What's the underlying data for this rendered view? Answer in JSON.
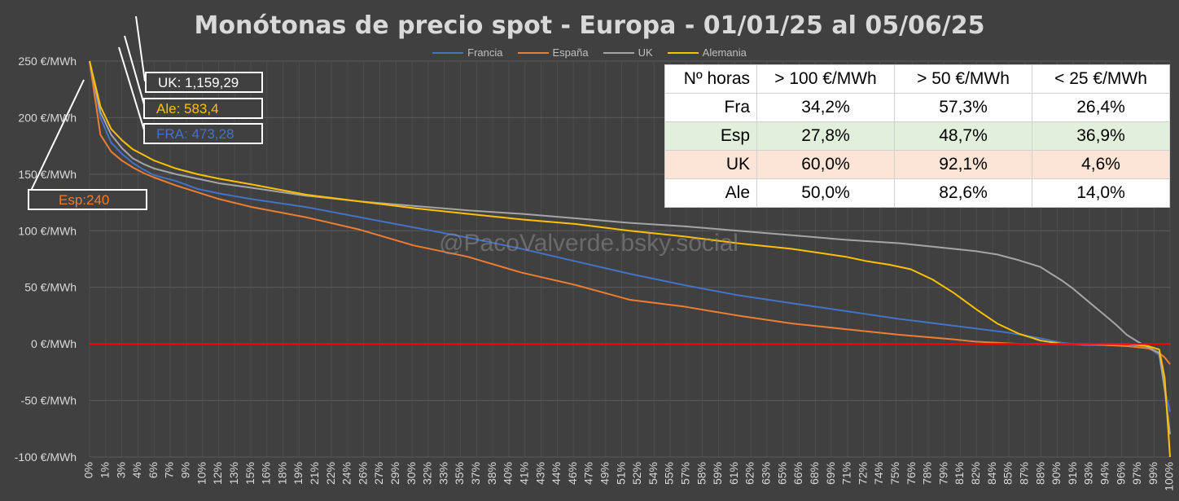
{
  "title": "Monótonas de precio spot - Europa  - 01/01/25 al 05/06/25",
  "watermark": "@PacoValverde.bsky.social",
  "colors": {
    "Francia": "#4472c4",
    "España": "#ed7d31",
    "UK": "#a5a5a5",
    "Alemania": "#ffc000",
    "zero_line": "#ff0000",
    "background": "#404040"
  },
  "callouts": [
    {
      "key": "uk",
      "text": "UK: 1,159,29",
      "color": "#ffffff"
    },
    {
      "key": "ale",
      "text": "Ale: 583,4",
      "color": "#ffc000"
    },
    {
      "key": "fra",
      "text": "FRA: 473,28",
      "color": "#4472c4"
    },
    {
      "key": "esp",
      "text": "Esp:240",
      "color": "#ed7d31"
    }
  ],
  "table": {
    "headers": [
      "Nº horas",
      "> 100 €/MWh",
      "> 50 €/MWh",
      "< 25 €/MWh"
    ],
    "rows": [
      {
        "label": "Fra",
        "values": [
          "34,2%",
          "57,3%",
          "26,4%"
        ],
        "highlight": "none"
      },
      {
        "label": "Esp",
        "values": [
          "27,8%",
          "48,7%",
          "36,9%"
        ],
        "highlight": "green"
      },
      {
        "label": "UK",
        "values": [
          "60,0%",
          "92,1%",
          "4,6%"
        ],
        "highlight": "red"
      },
      {
        "label": "Ale",
        "values": [
          "50,0%",
          "82,6%",
          "14,0%"
        ],
        "highlight": "none"
      }
    ]
  },
  "chart_data": {
    "type": "line",
    "title": "Monótonas de precio spot - Europa  - 01/01/25 al 05/06/25",
    "xlabel": "",
    "ylabel": "",
    "ylim": [
      -100,
      250
    ],
    "xlim": [
      0,
      100
    ],
    "y_ticks": [
      250,
      200,
      150,
      100,
      50,
      0,
      -50,
      -100
    ],
    "y_tick_labels": [
      "250 €/MWh",
      "200 €/MWh",
      "150 €/MWh",
      "100 €/MWh",
      "50 €/MWh",
      "0 €/MWh",
      "-50 €/MWh",
      "-100 €/MWh"
    ],
    "x_tick_labels": [
      "0%",
      "1%",
      "3%",
      "4%",
      "6%",
      "7%",
      "9%",
      "10%",
      "12%",
      "13%",
      "15%",
      "16%",
      "18%",
      "19%",
      "21%",
      "22%",
      "24%",
      "26%",
      "27%",
      "29%",
      "30%",
      "32%",
      "33%",
      "35%",
      "37%",
      "38%",
      "40%",
      "41%",
      "43%",
      "44%",
      "46%",
      "47%",
      "49%",
      "51%",
      "52%",
      "54%",
      "55%",
      "57%",
      "58%",
      "59%",
      "61%",
      "62%",
      "63%",
      "65%",
      "66%",
      "68%",
      "69%",
      "71%",
      "72%",
      "74%",
      "75%",
      "76%",
      "78%",
      "79%",
      "81%",
      "82%",
      "84%",
      "85%",
      "87%",
      "88%",
      "90%",
      "91%",
      "93%",
      "94%",
      "96%",
      "97%",
      "99%",
      "100%"
    ],
    "grid": true,
    "legend_position": "top",
    "series": [
      {
        "name": "Francia",
        "x": [
          0,
          1,
          2,
          3,
          4,
          5,
          6,
          8,
          10,
          12,
          15,
          20,
          25,
          30,
          35,
          40,
          45,
          50,
          55,
          60,
          65,
          70,
          75,
          80,
          85,
          88,
          90,
          92,
          94,
          96,
          98,
          99,
          99.5,
          100
        ],
        "y": [
          250,
          200,
          178,
          168,
          160,
          154,
          149,
          144,
          137,
          133,
          128,
          121,
          112,
          103,
          94,
          84,
          73,
          62,
          52,
          43,
          36,
          29,
          22,
          16,
          10,
          5,
          1,
          -1,
          -1,
          -2,
          -3,
          -10,
          -40,
          -60
        ]
      },
      {
        "name": "España",
        "x": [
          0,
          1,
          2,
          3,
          4,
          5,
          6,
          8,
          10,
          12,
          15,
          20,
          25,
          30,
          35,
          40,
          45,
          50,
          55,
          60,
          65,
          70,
          75,
          80,
          82,
          84,
          86,
          88,
          90,
          92,
          94,
          96,
          98,
          99,
          99.5,
          100
        ],
        "y": [
          250,
          185,
          170,
          162,
          156,
          151,
          147,
          140,
          134,
          128,
          121,
          112,
          101,
          87,
          77,
          63,
          52,
          39,
          33,
          25,
          18,
          13,
          8,
          4,
          2,
          1,
          0,
          0,
          0,
          0,
          -1,
          -2,
          -4,
          -8,
          -12,
          -18
        ]
      },
      {
        "name": "UK",
        "x": [
          0,
          1,
          2,
          3,
          4,
          5,
          6,
          8,
          10,
          12,
          15,
          20,
          25,
          30,
          35,
          40,
          45,
          50,
          55,
          60,
          65,
          70,
          75,
          80,
          82,
          84,
          86,
          88,
          89,
          90,
          91,
          92,
          93,
          94,
          95,
          96,
          97,
          98,
          99,
          99.5,
          100
        ],
        "y": [
          250,
          205,
          185,
          173,
          164,
          159,
          155,
          150,
          146,
          142,
          138,
          131,
          126,
          122,
          118,
          115,
          111,
          107,
          104,
          100,
          96,
          92,
          89,
          84,
          82,
          79,
          74,
          68,
          62,
          56,
          49,
          41,
          33,
          25,
          17,
          8,
          2,
          -3,
          -8,
          -40,
          -80
        ]
      },
      {
        "name": "Alemania",
        "x": [
          0,
          1,
          2,
          3,
          4,
          5,
          6,
          8,
          10,
          12,
          15,
          20,
          25,
          30,
          35,
          40,
          45,
          50,
          55,
          60,
          65,
          70,
          72,
          74,
          76,
          78,
          80,
          82,
          84,
          86,
          88,
          90,
          92,
          94,
          96,
          98,
          99,
          99.5,
          100
        ],
        "y": [
          250,
          210,
          190,
          180,
          172,
          167,
          162,
          155,
          150,
          146,
          141,
          132,
          126,
          120,
          115,
          110,
          106,
          100,
          95,
          89,
          84,
          77,
          73,
          70,
          66,
          57,
          45,
          31,
          18,
          9,
          3,
          0,
          0,
          0,
          0,
          -2,
          -5,
          -30,
          -100
        ]
      }
    ]
  }
}
